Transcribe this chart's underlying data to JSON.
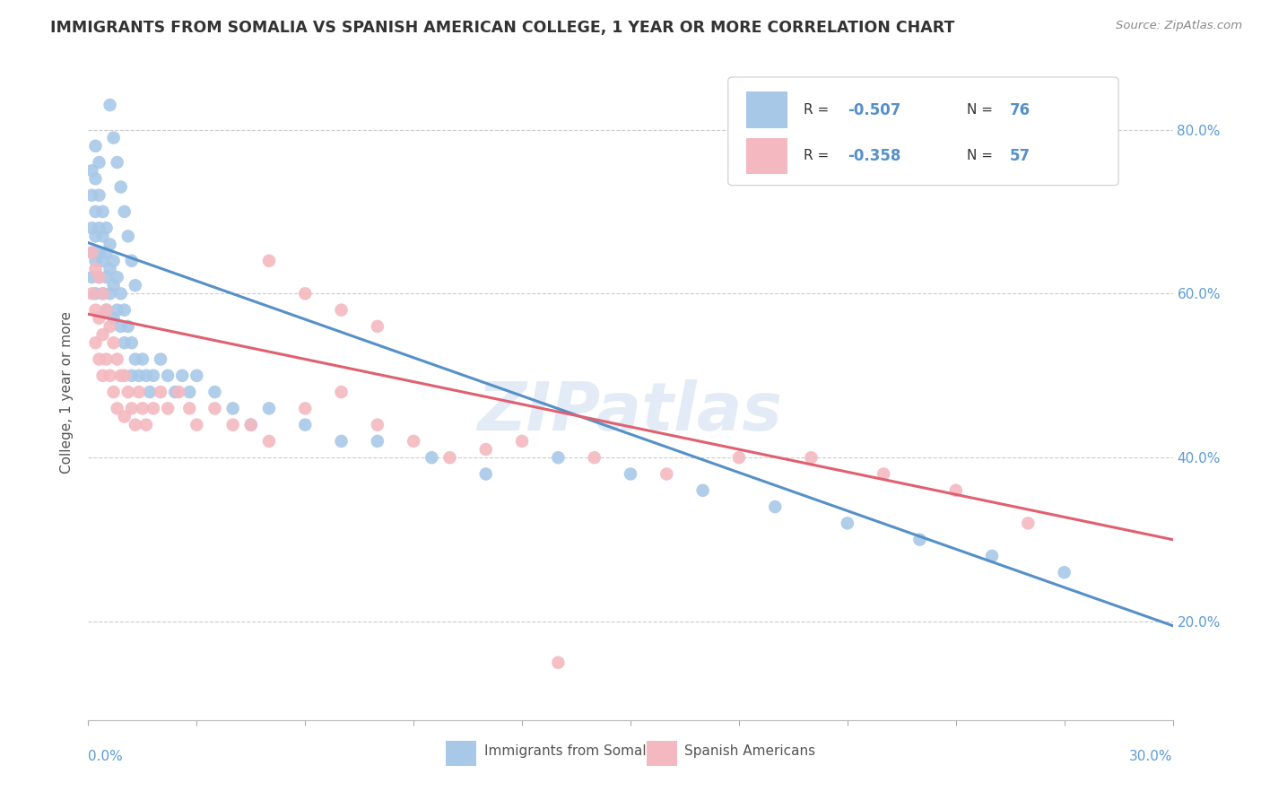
{
  "title": "IMMIGRANTS FROM SOMALIA VS SPANISH AMERICAN COLLEGE, 1 YEAR OR MORE CORRELATION CHART",
  "source": "Source: ZipAtlas.com",
  "ylabel": "College, 1 year or more",
  "right_yticklabels": [
    "20.0%",
    "40.0%",
    "60.0%",
    "80.0%"
  ],
  "right_yticks": [
    0.2,
    0.4,
    0.6,
    0.8
  ],
  "x_min": 0.0,
  "x_max": 0.3,
  "y_min": 0.08,
  "y_max": 0.88,
  "blue_color": "#a8c8e8",
  "pink_color": "#f4b8c0",
  "blue_line_color": "#5590c8",
  "pink_line_color": "#e06070",
  "soma_legend": "Immigrants from Somalia",
  "spanish_legend": "Spanish Americans",
  "watermark": "ZIPatlas",
  "blue_line_x": [
    0.0,
    0.3
  ],
  "blue_line_y": [
    0.662,
    0.195
  ],
  "pink_line_x": [
    0.0,
    0.3
  ],
  "pink_line_y": [
    0.575,
    0.3
  ],
  "blue_scatter_x": [
    0.001,
    0.001,
    0.001,
    0.001,
    0.001,
    0.002,
    0.002,
    0.002,
    0.002,
    0.002,
    0.002,
    0.003,
    0.003,
    0.003,
    0.003,
    0.003,
    0.004,
    0.004,
    0.004,
    0.004,
    0.005,
    0.005,
    0.005,
    0.005,
    0.006,
    0.006,
    0.006,
    0.007,
    0.007,
    0.007,
    0.008,
    0.008,
    0.009,
    0.009,
    0.01,
    0.01,
    0.011,
    0.012,
    0.012,
    0.013,
    0.014,
    0.015,
    0.016,
    0.017,
    0.018,
    0.02,
    0.022,
    0.024,
    0.026,
    0.028,
    0.03,
    0.035,
    0.04,
    0.045,
    0.05,
    0.06,
    0.07,
    0.08,
    0.095,
    0.11,
    0.13,
    0.15,
    0.17,
    0.19,
    0.21,
    0.23,
    0.25,
    0.27,
    0.006,
    0.007,
    0.008,
    0.009,
    0.01,
    0.011,
    0.012,
    0.013
  ],
  "blue_scatter_y": [
    0.75,
    0.72,
    0.68,
    0.65,
    0.62,
    0.78,
    0.74,
    0.7,
    0.67,
    0.64,
    0.6,
    0.76,
    0.72,
    0.68,
    0.65,
    0.62,
    0.7,
    0.67,
    0.64,
    0.6,
    0.68,
    0.65,
    0.62,
    0.58,
    0.66,
    0.63,
    0.6,
    0.64,
    0.61,
    0.57,
    0.62,
    0.58,
    0.6,
    0.56,
    0.58,
    0.54,
    0.56,
    0.54,
    0.5,
    0.52,
    0.5,
    0.52,
    0.5,
    0.48,
    0.5,
    0.52,
    0.5,
    0.48,
    0.5,
    0.48,
    0.5,
    0.48,
    0.46,
    0.44,
    0.46,
    0.44,
    0.42,
    0.42,
    0.4,
    0.38,
    0.4,
    0.38,
    0.36,
    0.34,
    0.32,
    0.3,
    0.28,
    0.26,
    0.83,
    0.79,
    0.76,
    0.73,
    0.7,
    0.67,
    0.64,
    0.61
  ],
  "pink_scatter_x": [
    0.001,
    0.001,
    0.002,
    0.002,
    0.002,
    0.003,
    0.003,
    0.003,
    0.004,
    0.004,
    0.004,
    0.005,
    0.005,
    0.006,
    0.006,
    0.007,
    0.007,
    0.008,
    0.008,
    0.009,
    0.01,
    0.01,
    0.011,
    0.012,
    0.013,
    0.014,
    0.015,
    0.016,
    0.018,
    0.02,
    0.022,
    0.025,
    0.028,
    0.03,
    0.035,
    0.04,
    0.045,
    0.05,
    0.06,
    0.07,
    0.08,
    0.09,
    0.1,
    0.11,
    0.12,
    0.14,
    0.16,
    0.18,
    0.2,
    0.22,
    0.24,
    0.26,
    0.05,
    0.06,
    0.07,
    0.08,
    0.13
  ],
  "pink_scatter_y": [
    0.65,
    0.6,
    0.63,
    0.58,
    0.54,
    0.62,
    0.57,
    0.52,
    0.6,
    0.55,
    0.5,
    0.58,
    0.52,
    0.56,
    0.5,
    0.54,
    0.48,
    0.52,
    0.46,
    0.5,
    0.5,
    0.45,
    0.48,
    0.46,
    0.44,
    0.48,
    0.46,
    0.44,
    0.46,
    0.48,
    0.46,
    0.48,
    0.46,
    0.44,
    0.46,
    0.44,
    0.44,
    0.42,
    0.46,
    0.48,
    0.44,
    0.42,
    0.4,
    0.41,
    0.42,
    0.4,
    0.38,
    0.4,
    0.4,
    0.38,
    0.36,
    0.32,
    0.64,
    0.6,
    0.58,
    0.56,
    0.15
  ]
}
